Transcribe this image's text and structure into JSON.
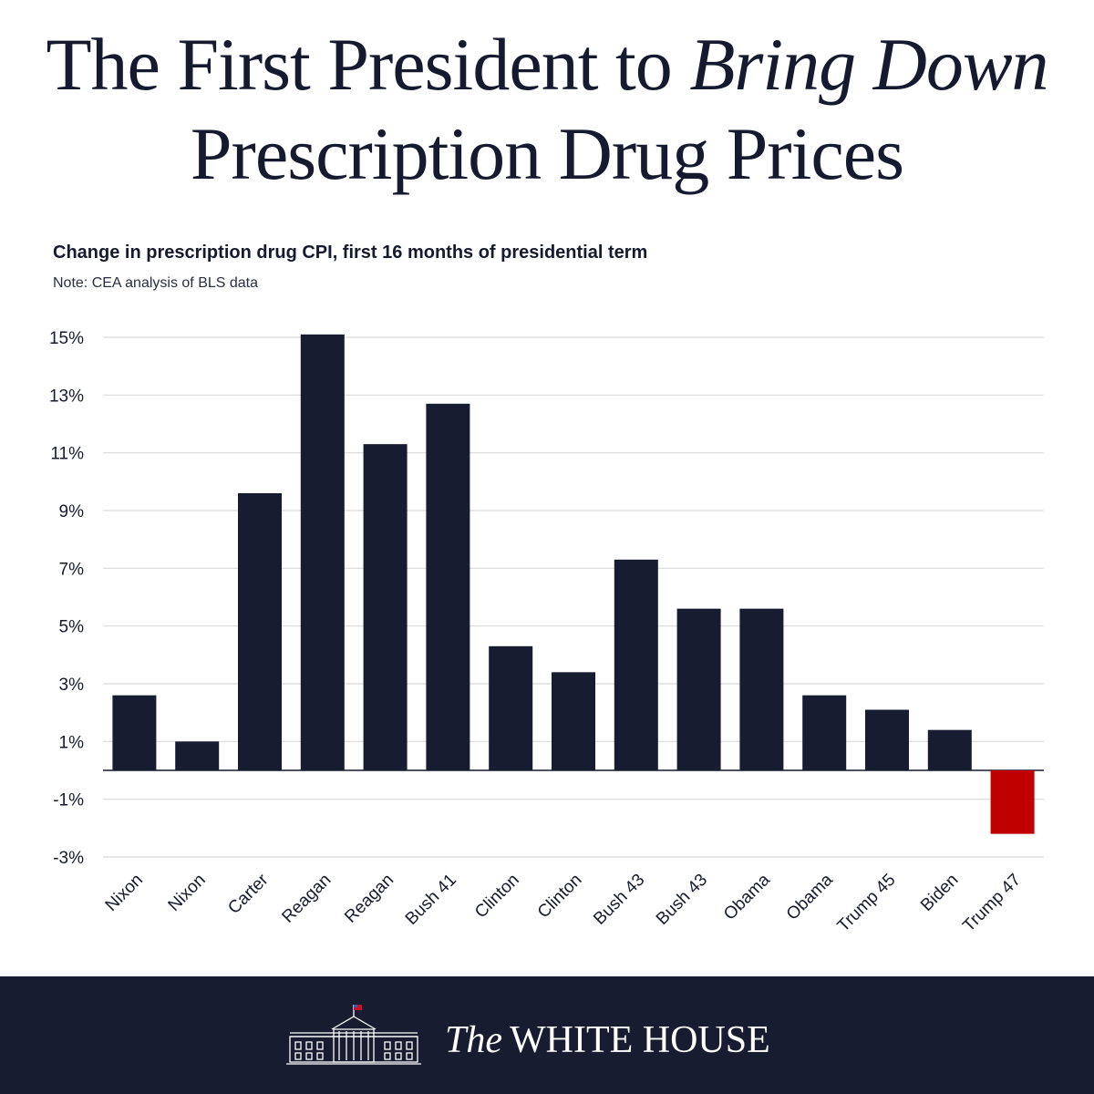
{
  "headline": {
    "line1_a": "The First President to ",
    "line1_b": "Bring Down",
    "line2": "Prescription Drug Prices"
  },
  "subtitle": "Change in prescription drug CPI, first 16 months of presidential term",
  "note": "Note: CEA analysis of BLS data",
  "footer": {
    "the": "The",
    "name": "WHITE HOUSE"
  },
  "colors": {
    "bar": "#171c31",
    "highlight": "#c00000",
    "gridline": "#d9d9d9",
    "footer_bg": "#171c31"
  },
  "icons": [
    "white-house-logo-icon",
    "flag-icon"
  ],
  "chart_data": {
    "type": "bar",
    "title": "Change in prescription drug CPI, first 16 months of presidential term",
    "xlabel": "",
    "ylabel": "",
    "categories": [
      "Nixon",
      "Nixon",
      "Carter",
      "Reagan",
      "Reagan",
      "Bush 41",
      "Clinton",
      "Clinton",
      "Bush 43",
      "Bush 43",
      "Obama",
      "Obama",
      "Trump 45",
      "Biden",
      "Trump 47"
    ],
    "values": [
      2.6,
      1.0,
      9.6,
      15.1,
      11.3,
      12.7,
      4.3,
      3.4,
      7.3,
      5.6,
      5.6,
      2.6,
      2.1,
      1.4,
      -2.2
    ],
    "highlight_category_index": 14,
    "y_ticks": [
      15,
      13,
      11,
      9,
      7,
      5,
      3,
      1,
      -1,
      -3
    ],
    "y_tick_labels": [
      "15%",
      "13%",
      "11%",
      "9%",
      "7%",
      "5%",
      "3%",
      "1%",
      "-1%",
      "-3%"
    ],
    "ylim": [
      -3,
      15
    ],
    "grid": true,
    "legend": "none"
  }
}
